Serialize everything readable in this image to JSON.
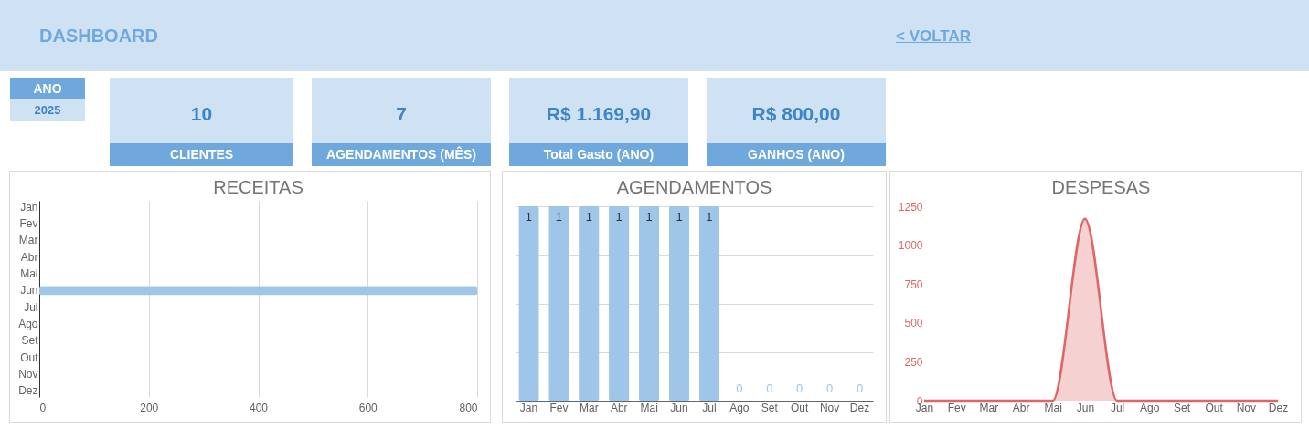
{
  "chart_data": [
    {
      "type": "other",
      "title": "DASHBOARD",
      "annotations": [
        "< VOLTAR",
        "ANO",
        "2025",
        "10",
        "CLIENTES",
        "7",
        "AGENDAMENTOS (MÊS)",
        "R$ 1.169,90",
        "Total Gasto (ANO)",
        "R$ 800,00",
        "GANHOS (ANO)"
      ]
    },
    {
      "type": "bar",
      "title": "RECEITAS",
      "orientation": "horizontal",
      "categories": [
        "Jan",
        "Fev",
        "Mar",
        "Abr",
        "Mai",
        "Jun",
        "Jul",
        "Ago",
        "Set",
        "Out",
        "Nov",
        "Dez"
      ],
      "values": [
        0,
        0,
        0,
        0,
        0,
        800,
        0,
        0,
        0,
        0,
        0,
        0
      ],
      "color": "#9fc5e8",
      "xlim": [
        0,
        800
      ],
      "xticks": [
        0,
        200,
        400,
        600,
        800
      ],
      "grid": "x"
    },
    {
      "type": "bar",
      "title": "AGENDAMENTOS",
      "categories": [
        "Jan",
        "Fev",
        "Mar",
        "Abr",
        "Mai",
        "Jun",
        "Jul",
        "Ago",
        "Set",
        "Out",
        "Nov",
        "Dez"
      ],
      "values": [
        1,
        1,
        1,
        1,
        1,
        1,
        1,
        0,
        0,
        0,
        0,
        0
      ],
      "color": "#9fc5e8",
      "ylim": [
        0,
        1
      ],
      "yticks": [
        {
          "value": 0,
          "label": null
        },
        {
          "value": 0.25,
          "label": null
        },
        {
          "value": 0.5,
          "label": null
        },
        {
          "value": 0.75,
          "label": null
        },
        {
          "value": 1,
          "label": null
        }
      ],
      "grid": "y",
      "data_labels": true
    },
    {
      "type": "area",
      "title": "DESPESAS",
      "categories": [
        "Jan",
        "Fev",
        "Mar",
        "Abr",
        "Mai",
        "Jun",
        "Jul",
        "Ago",
        "Set",
        "Out",
        "Nov",
        "Dez"
      ],
      "values": [
        0,
        0,
        0,
        0,
        0,
        1170,
        0,
        0,
        0,
        0,
        0,
        0
      ],
      "color": "#e06666",
      "ylim": [
        0,
        1250
      ],
      "yticks": [
        0,
        250,
        500,
        750,
        1000,
        1250
      ],
      "grid": false
    }
  ]
}
